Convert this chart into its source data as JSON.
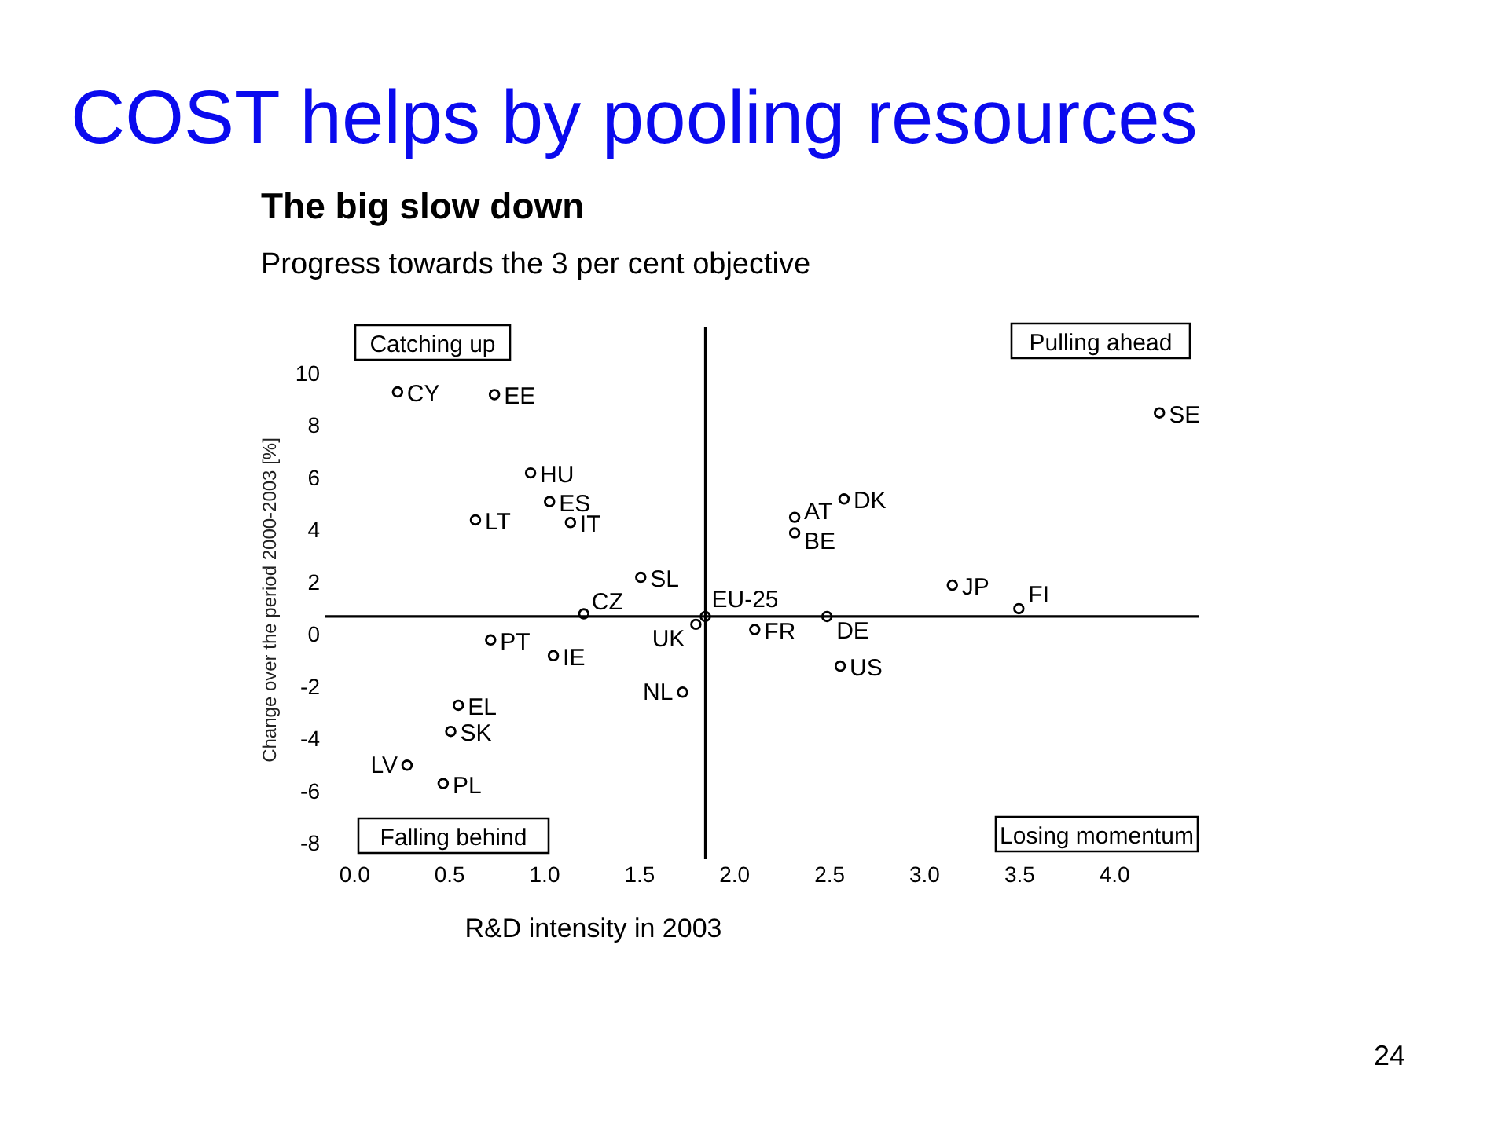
{
  "chart_data": {
    "type": "scatter",
    "title": "The big slow down",
    "subtitle": "Progress towards the 3 per cent objective",
    "xlabel": "R&D intensity in 2003",
    "ylabel": "Change over the period 2000-2003 [%]",
    "annotations": [
      "COST helps by pooling resources",
      "Catching up",
      "Pulling ahead",
      "Falling behind",
      "Losing momentum",
      "24"
    ],
    "xlim": [
      -0.15,
      4.45
    ],
    "ylim": [
      -8.6,
      11.8
    ],
    "xticks": [
      {
        "value": 0,
        "label": "0.0"
      },
      {
        "value": 0.5,
        "label": "0.5"
      },
      {
        "value": 1,
        "label": "1.0"
      },
      {
        "value": 1.5,
        "label": "1.5"
      },
      {
        "value": 2,
        "label": "2.0"
      },
      {
        "value": 2.5,
        "label": "2.5"
      },
      {
        "value": 3,
        "label": "3.0"
      },
      {
        "value": 3.5,
        "label": "3.5"
      },
      {
        "value": 4,
        "label": "4.0"
      }
    ],
    "yticks": [
      -8,
      -6,
      -4,
      -2,
      0,
      2,
      4,
      6,
      8,
      10
    ],
    "marker": "circle",
    "ref_lines": [
      {
        "axis": "x",
        "value": 1.85
      },
      {
        "axis": "y",
        "value": 0.7
      }
    ],
    "series": [
      {
        "name": "CY",
        "color": "#000000",
        "x": [
          0.23
        ],
        "values": [
          9.3
        ]
      },
      {
        "name": "EE",
        "color": "#000000",
        "x": [
          0.74
        ],
        "values": [
          9.2
        ]
      },
      {
        "name": "HU",
        "color": "#000000",
        "x": [
          0.93
        ],
        "values": [
          6.2
        ]
      },
      {
        "name": "ES",
        "color": "#000000",
        "x": [
          1.03
        ],
        "values": [
          5.1
        ]
      },
      {
        "name": "LT",
        "color": "#000000",
        "x": [
          0.64
        ],
        "values": [
          4.4
        ]
      },
      {
        "name": "IT",
        "color": "#000000",
        "x": [
          1.14
        ],
        "values": [
          4.3
        ]
      },
      {
        "name": "SL",
        "color": "#000000",
        "x": [
          1.51
        ],
        "values": [
          2.2
        ]
      },
      {
        "name": "CZ",
        "color": "#000000",
        "x": [
          1.21
        ],
        "values": [
          0.8
        ]
      },
      {
        "name": "EU-25",
        "color": "#000000",
        "x": [
          1.85
        ],
        "values": [
          0.7
        ]
      },
      {
        "name": "UK",
        "color": "#000000",
        "x": [
          1.8
        ],
        "values": [
          0.4
        ]
      },
      {
        "name": "PT",
        "color": "#000000",
        "x": [
          0.72
        ],
        "values": [
          -0.2
        ]
      },
      {
        "name": "IE",
        "color": "#000000",
        "x": [
          1.05
        ],
        "values": [
          -0.8
        ]
      },
      {
        "name": "NL",
        "color": "#000000",
        "x": [
          1.73
        ],
        "values": [
          -2.2
        ]
      },
      {
        "name": "EL",
        "color": "#000000",
        "x": [
          0.55
        ],
        "values": [
          -2.7
        ]
      },
      {
        "name": "SK",
        "color": "#000000",
        "x": [
          0.51
        ],
        "values": [
          -3.7
        ]
      },
      {
        "name": "LV",
        "color": "#000000",
        "x": [
          0.28
        ],
        "values": [
          -5.0
        ]
      },
      {
        "name": "PL",
        "color": "#000000",
        "x": [
          0.47
        ],
        "values": [
          -5.7
        ]
      },
      {
        "name": "AT",
        "color": "#000000",
        "x": [
          2.32
        ],
        "values": [
          4.5
        ]
      },
      {
        "name": "DK",
        "color": "#000000",
        "x": [
          2.58
        ],
        "values": [
          5.2
        ]
      },
      {
        "name": "BE",
        "color": "#000000",
        "x": [
          2.32
        ],
        "values": [
          3.9
        ]
      },
      {
        "name": "SE",
        "color": "#000000",
        "x": [
          4.24
        ],
        "values": [
          8.5
        ]
      },
      {
        "name": "JP",
        "color": "#000000",
        "x": [
          3.15
        ],
        "values": [
          1.9
        ]
      },
      {
        "name": "FI",
        "color": "#000000",
        "x": [
          3.5
        ],
        "values": [
          1.0
        ]
      },
      {
        "name": "DE",
        "color": "#000000",
        "x": [
          2.49
        ],
        "values": [
          0.7
        ]
      },
      {
        "name": "FR",
        "color": "#000000",
        "x": [
          2.11
        ],
        "values": [
          0.2
        ]
      },
      {
        "name": "US",
        "color": "#000000",
        "x": [
          2.56
        ],
        "values": [
          -1.2
        ]
      }
    ]
  }
}
